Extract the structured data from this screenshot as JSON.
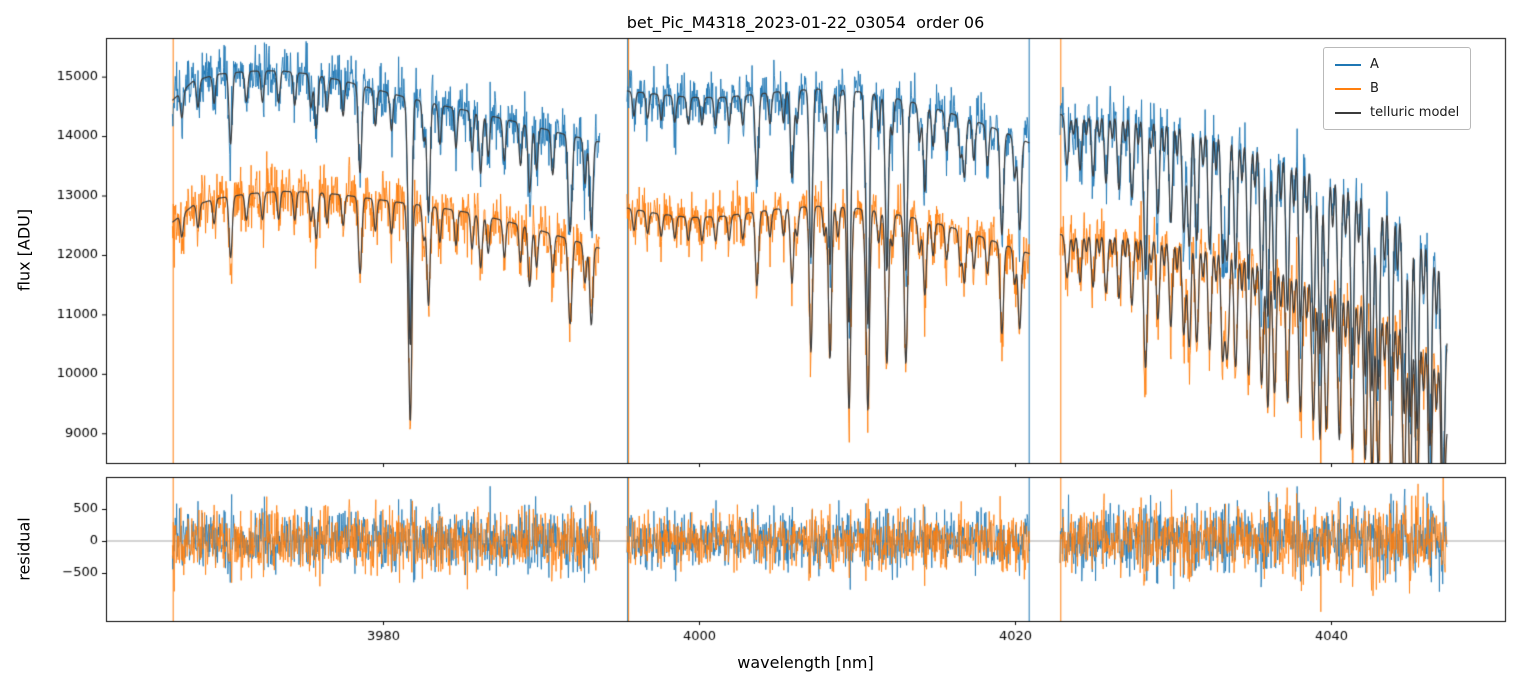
{
  "chart_data": {
    "type": "line",
    "title": "bet_Pic_M4318_2023-01-22_03054  order 06",
    "xlabel": "wavelength [nm]",
    "xlim": [
      3962.5,
      4051.0
    ],
    "xticks": [
      3980,
      4000,
      4020,
      4040
    ],
    "panels": [
      {
        "name": "flux",
        "ylabel": "flux [ADU]",
        "ylim": [
          8500,
          15650
        ],
        "yticks": [
          9000,
          10000,
          11000,
          12000,
          13000,
          14000,
          15000
        ]
      },
      {
        "name": "residual",
        "ylabel": "residual",
        "ylim": [
          -1250,
          1000
        ],
        "yticks": [
          -500,
          0,
          500
        ]
      }
    ],
    "legend": [
      {
        "label": "A",
        "color": "#1f77b4"
      },
      {
        "label": "B",
        "color": "#ff7f0e"
      },
      {
        "label": "telluric model",
        "color": "#3b3b3b"
      }
    ],
    "segments": [
      {
        "x0": 3966.7,
        "x1": 3993.75
      },
      {
        "x0": 3995.45,
        "x1": 4020.95
      },
      {
        "x0": 4022.85,
        "x1": 4047.35
      }
    ],
    "continuum_A": [
      [
        3966.7,
        14600
      ],
      [
        3968.0,
        14920
      ],
      [
        3969.5,
        15040
      ],
      [
        3971.5,
        15090
      ],
      [
        3973.5,
        15100
      ],
      [
        3975.5,
        15040
      ],
      [
        3977.5,
        14930
      ],
      [
        3979.5,
        14790
      ],
      [
        3981.5,
        14650
      ],
      [
        3983.5,
        14530
      ],
      [
        3985.5,
        14420
      ],
      [
        3987.5,
        14300
      ],
      [
        3989.5,
        14170
      ],
      [
        3991.5,
        14030
      ],
      [
        3993.75,
        13900
      ],
      [
        3995.45,
        14760
      ],
      [
        3997.5,
        14700
      ],
      [
        3999.5,
        14650
      ],
      [
        4001.5,
        14650
      ],
      [
        4003.5,
        14700
      ],
      [
        4005.5,
        14760
      ],
      [
        4007.5,
        14790
      ],
      [
        4009.5,
        14770
      ],
      [
        4011.5,
        14690
      ],
      [
        4013.5,
        14570
      ],
      [
        4015.5,
        14420
      ],
      [
        4017.5,
        14250
      ],
      [
        4019.0,
        14100
      ],
      [
        4020.95,
        13880
      ],
      [
        4022.85,
        14360
      ],
      [
        4024.5,
        14420
      ],
      [
        4026.5,
        14440
      ],
      [
        4028.5,
        14400
      ],
      [
        4030.5,
        14320
      ],
      [
        4032.5,
        14210
      ],
      [
        4034.5,
        14070
      ],
      [
        4036.5,
        13900
      ],
      [
        4038.5,
        13700
      ],
      [
        4040.0,
        13540
      ],
      [
        4041.5,
        13350
      ],
      [
        4043.0,
        13130
      ],
      [
        4044.5,
        12870
      ],
      [
        4045.8,
        12560
      ],
      [
        4046.8,
        12150
      ],
      [
        4047.35,
        10700
      ]
    ],
    "continuum_B": [
      [
        3966.7,
        12550
      ],
      [
        3968.0,
        12830
      ],
      [
        3969.5,
        12950
      ],
      [
        3971.5,
        13030
      ],
      [
        3973.5,
        13070
      ],
      [
        3975.5,
        13060
      ],
      [
        3977.5,
        13010
      ],
      [
        3979.5,
        12940
      ],
      [
        3981.5,
        12870
      ],
      [
        3983.5,
        12800
      ],
      [
        3985.5,
        12710
      ],
      [
        3987.5,
        12590
      ],
      [
        3989.5,
        12450
      ],
      [
        3991.5,
        12290
      ],
      [
        3993.75,
        12110
      ],
      [
        3995.45,
        12790
      ],
      [
        3997.5,
        12690
      ],
      [
        3999.5,
        12630
      ],
      [
        4001.5,
        12650
      ],
      [
        4003.5,
        12720
      ],
      [
        4005.5,
        12790
      ],
      [
        4007.5,
        12820
      ],
      [
        4009.5,
        12800
      ],
      [
        4011.5,
        12730
      ],
      [
        4013.5,
        12630
      ],
      [
        4015.5,
        12500
      ],
      [
        4017.5,
        12340
      ],
      [
        4019.0,
        12200
      ],
      [
        4020.95,
        12020
      ],
      [
        4022.85,
        12340
      ],
      [
        4024.5,
        12400
      ],
      [
        4026.5,
        12420
      ],
      [
        4028.5,
        12390
      ],
      [
        4030.5,
        12320
      ],
      [
        4032.5,
        12230
      ],
      [
        4034.5,
        12110
      ],
      [
        4036.5,
        11960
      ],
      [
        4038.5,
        11790
      ],
      [
        4040.0,
        11650
      ],
      [
        4041.5,
        11480
      ],
      [
        4043.0,
        11280
      ],
      [
        4044.5,
        11040
      ],
      [
        4045.8,
        10760
      ],
      [
        4046.8,
        10380
      ],
      [
        4047.35,
        9150
      ]
    ],
    "telluric_combs": [
      {
        "x0": 3967.3,
        "x1": 3993.6,
        "spacing": 1.02,
        "depth0": 0.03,
        "depth1": 0.055,
        "width": 0.09
      },
      {
        "x0": 3995.9,
        "x1": 4020.8,
        "spacing": 0.86,
        "depth0": 0.028,
        "depth1": 0.05,
        "width": 0.09
      },
      {
        "x0": 4023.3,
        "x1": 4047.2,
        "spacing": 0.82,
        "depth0": 0.06,
        "depth1": 0.3,
        "width": 0.11
      },
      {
        "x0": 4023.7,
        "x1": 4047.0,
        "spacing": 0.82,
        "depth0": 0.025,
        "depth1": 0.1,
        "width": 0.08
      }
    ],
    "telluric_lines": [
      {
        "x": 3970.4,
        "depth": 0.05,
        "width": 0.1
      },
      {
        "x": 3975.8,
        "depth": 0.06,
        "width": 0.1
      },
      {
        "x": 3978.6,
        "depth": 0.07,
        "width": 0.1
      },
      {
        "x": 3981.75,
        "depth": 0.28,
        "width": 0.1
      },
      {
        "x": 3982.9,
        "depth": 0.13,
        "width": 0.1
      },
      {
        "x": 3986.2,
        "depth": 0.07,
        "width": 0.1
      },
      {
        "x": 3989.3,
        "depth": 0.08,
        "width": 0.1
      },
      {
        "x": 3991.9,
        "depth": 0.09,
        "width": 0.1
      },
      {
        "x": 3993.2,
        "depth": 0.11,
        "width": 0.1
      },
      {
        "x": 4003.7,
        "depth": 0.07,
        "width": 0.1
      },
      {
        "x": 4005.9,
        "depth": 0.1,
        "width": 0.1
      },
      {
        "x": 4007.1,
        "depth": 0.16,
        "width": 0.1
      },
      {
        "x": 4008.3,
        "depth": 0.2,
        "width": 0.1
      },
      {
        "x": 4009.5,
        "depth": 0.26,
        "width": 0.1
      },
      {
        "x": 4010.7,
        "depth": 0.26,
        "width": 0.1
      },
      {
        "x": 4011.9,
        "depth": 0.2,
        "width": 0.1
      },
      {
        "x": 4013.1,
        "depth": 0.16,
        "width": 0.1
      },
      {
        "x": 4014.3,
        "depth": 0.1,
        "width": 0.1
      },
      {
        "x": 4016.8,
        "depth": 0.07,
        "width": 0.1
      },
      {
        "x": 4019.2,
        "depth": 0.09,
        "width": 0.1
      },
      {
        "x": 4020.3,
        "depth": 0.11,
        "width": 0.1
      },
      {
        "x": 4028.3,
        "depth": 0.1,
        "width": 0.1
      },
      {
        "x": 4031.0,
        "depth": 0.12,
        "width": 0.1
      },
      {
        "x": 4033.4,
        "depth": 0.14,
        "width": 0.1
      },
      {
        "x": 4036.0,
        "depth": 0.16,
        "width": 0.1
      },
      {
        "x": 4039.3,
        "depth": 0.18,
        "width": 0.1
      },
      {
        "x": 4042.6,
        "depth": 0.2,
        "width": 0.1
      },
      {
        "x": 4045.0,
        "depth": 0.2,
        "width": 0.1
      }
    ],
    "edge_spikes": [
      {
        "x": 3966.75,
        "series": "B"
      },
      {
        "x": 3995.5,
        "series": "A"
      },
      {
        "x": 3995.56,
        "series": "B"
      },
      {
        "x": 4020.9,
        "series": "A"
      },
      {
        "x": 4022.9,
        "series": "B"
      }
    ],
    "noise": {
      "seed": 42,
      "step": 0.03,
      "sigma": [
        240,
        200,
        230
      ],
      "line_boost": 2.5
    },
    "zero_line_color": "#909090",
    "axis_color": "#000000"
  }
}
